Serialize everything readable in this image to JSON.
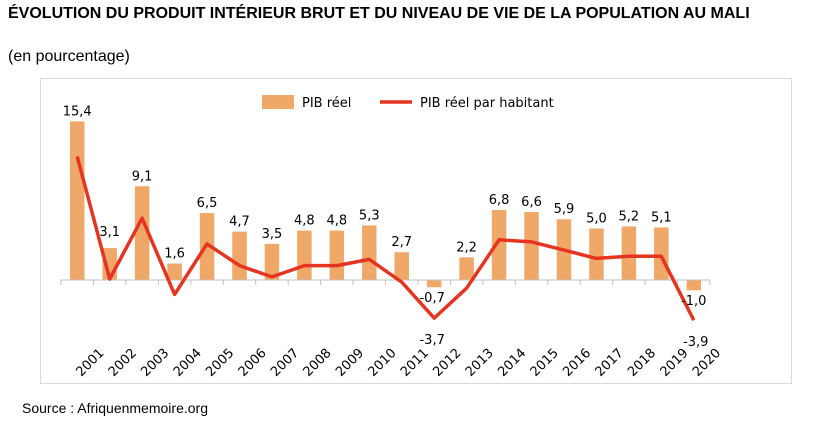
{
  "title": "ÉVOLUTION DU PRODUIT INTÉRIEUR BRUT ET DU NIVEAU DE VIE DE LA POPULATION AU MALI",
  "subtitle": "(en pourcentage)",
  "source": "Source : Afriquenmemoire.org",
  "colors": {
    "bar": "#f0a868",
    "line": "#e53420",
    "axis": "#bfbfbf"
  },
  "chart_data": {
    "type": "bar",
    "categories": [
      "2001",
      "2002",
      "2003",
      "2004",
      "2005",
      "2006",
      "2007",
      "2008",
      "2009",
      "2010",
      "2011",
      "2012",
      "2013",
      "2014",
      "2015",
      "2016",
      "2017",
      "2018",
      "2019",
      "2020"
    ],
    "series": [
      {
        "name": "PIB réel",
        "type": "bar",
        "values": [
          15.4,
          3.1,
          9.1,
          1.6,
          6.5,
          4.7,
          3.5,
          4.8,
          4.8,
          5.3,
          2.7,
          -0.7,
          2.2,
          6.8,
          6.6,
          5.9,
          5.0,
          5.2,
          5.1,
          -1.0
        ],
        "labels": [
          "15,4",
          "3,1",
          "9,1",
          "1,6",
          "6,5",
          "4,7",
          "3,5",
          "4,8",
          "4,8",
          "5,3",
          "2,7",
          "-0,7",
          "2,2",
          "6,8",
          "6,6",
          "5,9",
          "5,0",
          "5,2",
          "5,1",
          "-1,0"
        ]
      },
      {
        "name": "PIB réel par habitant",
        "type": "line",
        "values": [
          12.0,
          0.1,
          6.0,
          -1.4,
          3.5,
          1.4,
          0.3,
          1.4,
          1.4,
          2.0,
          -0.2,
          -3.7,
          -0.8,
          3.9,
          3.7,
          2.9,
          2.1,
          2.3,
          2.3,
          -3.9
        ],
        "labels": {
          "11": "-3,7",
          "19": "-3,9"
        }
      }
    ],
    "legend": "top-center",
    "ylim": [
      -6,
      17
    ]
  }
}
